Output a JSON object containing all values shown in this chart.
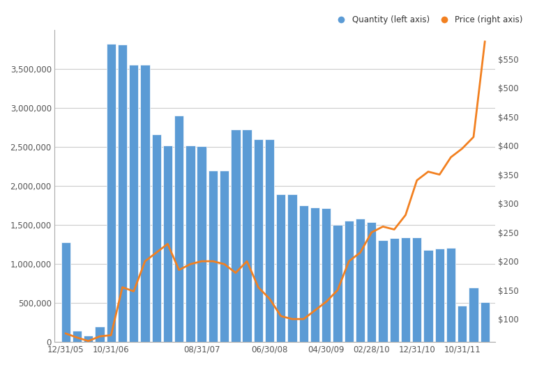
{
  "bar_color": "#5b9bd5",
  "line_color": "#f28020",
  "bg_color": "#ffffff",
  "grid_color": "#cccccc",
  "axis_label_color": "#555555",
  "legend_label_color": "#333333",
  "quantities": [
    1280000,
    150000,
    80000,
    200000,
    3820000,
    3810000,
    3560000,
    3560000,
    2660000,
    2520000,
    2900000,
    2520000,
    2510000,
    2200000,
    2200000,
    2730000,
    2730000,
    2600000,
    2600000,
    1900000,
    1900000,
    1750000,
    1730000,
    1720000,
    1500000,
    1560000,
    1580000,
    1540000,
    1310000,
    1330000,
    1340000,
    1340000,
    1180000,
    1200000,
    1210000,
    470000,
    700000,
    510000
  ],
  "prices": [
    75,
    68,
    62,
    70,
    72,
    155,
    148,
    200,
    215,
    230,
    185,
    195,
    200,
    200,
    195,
    180,
    200,
    155,
    135,
    105,
    100,
    100,
    115,
    130,
    150,
    200,
    215,
    250,
    260,
    255,
    280,
    340,
    355,
    350,
    380,
    395,
    415,
    580
  ],
  "xtick_labels": [
    "12/31/05",
    "10/31/06",
    "08/31/07",
    "06/30/08",
    "04/30/09",
    "02/28/10",
    "12/31/10",
    "10/31/11"
  ],
  "xtick_index": [
    0,
    4,
    12,
    18,
    23,
    27,
    31,
    35
  ],
  "yleft_ticks": [
    0,
    500000,
    1000000,
    1500000,
    2000000,
    2500000,
    3000000,
    3500000
  ],
  "yright_ticks": [
    100,
    150,
    200,
    250,
    300,
    350,
    400,
    450,
    500,
    550
  ],
  "yleft_max": 4000000,
  "yright_max": 600,
  "yright_min": 60
}
